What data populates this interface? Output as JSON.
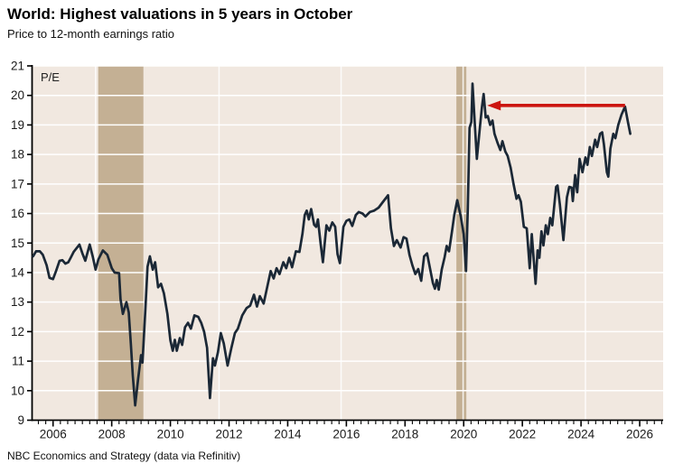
{
  "header": {
    "title": "World: Highest valuations in 5 years in October",
    "subtitle": "Price to 12-month earnings ratio"
  },
  "footer": {
    "source": "NBC Economics and Strategy (data via Refinitiv)"
  },
  "chart_data": {
    "type": "line",
    "title": "World: Highest valuations in 5 years in October",
    "subtitle": "Price to 12-month earnings ratio",
    "axis_corner_label": "P/E",
    "xlabel": "",
    "ylabel": "P/E",
    "x": {
      "min": 2005.3,
      "max": 2026.8,
      "major_ticks": [
        2006,
        2008,
        2010,
        2012,
        2014,
        2016,
        2018,
        2020,
        2022,
        2024,
        2026
      ],
      "minor_step": 0.25
    },
    "y": {
      "min": 9,
      "max": 21,
      "ticks": [
        9,
        10,
        11,
        12,
        13,
        14,
        15,
        16,
        17,
        18,
        19,
        20,
        21
      ]
    },
    "grid": "on",
    "legend": "none",
    "recession_bands": [
      {
        "from": 2007.54,
        "to": 2009.08
      },
      {
        "from": 2019.75,
        "to": 2020.09
      }
    ],
    "vertical_gridlines": [
      2007.45,
      2011.66,
      2015.82,
      2019.98,
      2024.15
    ],
    "annotation_arrow": {
      "value": 19.66,
      "tail_year": 2025.5,
      "head_year": 2020.8,
      "meaning": "October 2025 valuation equals highest level since late 2020"
    },
    "colors": {
      "plot_background": "#f1e8e0",
      "band": "#c4b094",
      "line": "#1b2836",
      "arrow": "#cc1510",
      "grid": "#ffffff",
      "axis": "#000000",
      "tick_text": "#1a1a1a"
    },
    "series": [
      {
        "name": "World price to 12-month earnings ratio",
        "points": [
          [
            2005.32,
            14.55
          ],
          [
            2005.42,
            14.72
          ],
          [
            2005.55,
            14.72
          ],
          [
            2005.65,
            14.6
          ],
          [
            2005.78,
            14.25
          ],
          [
            2005.88,
            13.82
          ],
          [
            2006.0,
            13.78
          ],
          [
            2006.1,
            14.05
          ],
          [
            2006.22,
            14.4
          ],
          [
            2006.32,
            14.42
          ],
          [
            2006.42,
            14.3
          ],
          [
            2006.52,
            14.35
          ],
          [
            2006.6,
            14.5
          ],
          [
            2006.7,
            14.7
          ],
          [
            2006.9,
            14.95
          ],
          [
            2007.0,
            14.65
          ],
          [
            2007.1,
            14.4
          ],
          [
            2007.25,
            14.95
          ],
          [
            2007.35,
            14.55
          ],
          [
            2007.45,
            14.1
          ],
          [
            2007.55,
            14.45
          ],
          [
            2007.7,
            14.75
          ],
          [
            2007.85,
            14.6
          ],
          [
            2008.0,
            14.15
          ],
          [
            2008.1,
            14.0
          ],
          [
            2008.25,
            13.98
          ],
          [
            2008.3,
            13.1
          ],
          [
            2008.38,
            12.6
          ],
          [
            2008.5,
            13.0
          ],
          [
            2008.58,
            12.65
          ],
          [
            2008.65,
            11.6
          ],
          [
            2008.72,
            10.5
          ],
          [
            2008.8,
            9.5
          ],
          [
            2008.9,
            10.4
          ],
          [
            2009.0,
            11.2
          ],
          [
            2009.05,
            10.95
          ],
          [
            2009.15,
            12.8
          ],
          [
            2009.22,
            14.2
          ],
          [
            2009.3,
            14.55
          ],
          [
            2009.4,
            14.1
          ],
          [
            2009.48,
            14.35
          ],
          [
            2009.58,
            13.5
          ],
          [
            2009.68,
            13.62
          ],
          [
            2009.78,
            13.3
          ],
          [
            2009.9,
            12.6
          ],
          [
            2010.0,
            11.7
          ],
          [
            2010.08,
            11.35
          ],
          [
            2010.15,
            11.72
          ],
          [
            2010.22,
            11.35
          ],
          [
            2010.32,
            11.78
          ],
          [
            2010.4,
            11.55
          ],
          [
            2010.5,
            12.15
          ],
          [
            2010.6,
            12.3
          ],
          [
            2010.7,
            12.1
          ],
          [
            2010.82,
            12.55
          ],
          [
            2010.95,
            12.5
          ],
          [
            2011.05,
            12.3
          ],
          [
            2011.15,
            12.0
          ],
          [
            2011.25,
            11.45
          ],
          [
            2011.35,
            9.75
          ],
          [
            2011.45,
            11.1
          ],
          [
            2011.52,
            10.85
          ],
          [
            2011.62,
            11.3
          ],
          [
            2011.72,
            11.95
          ],
          [
            2011.82,
            11.6
          ],
          [
            2011.95,
            10.85
          ],
          [
            2012.08,
            11.45
          ],
          [
            2012.2,
            11.95
          ],
          [
            2012.3,
            12.1
          ],
          [
            2012.45,
            12.55
          ],
          [
            2012.6,
            12.8
          ],
          [
            2012.72,
            12.88
          ],
          [
            2012.85,
            13.25
          ],
          [
            2012.95,
            12.85
          ],
          [
            2013.05,
            13.2
          ],
          [
            2013.18,
            12.95
          ],
          [
            2013.32,
            13.6
          ],
          [
            2013.42,
            14.05
          ],
          [
            2013.52,
            13.8
          ],
          [
            2013.62,
            14.15
          ],
          [
            2013.72,
            13.95
          ],
          [
            2013.85,
            14.35
          ],
          [
            2013.95,
            14.15
          ],
          [
            2014.05,
            14.5
          ],
          [
            2014.15,
            14.18
          ],
          [
            2014.28,
            14.72
          ],
          [
            2014.4,
            14.7
          ],
          [
            2014.5,
            15.3
          ],
          [
            2014.58,
            15.95
          ],
          [
            2014.65,
            16.1
          ],
          [
            2014.72,
            15.8
          ],
          [
            2014.8,
            16.15
          ],
          [
            2014.9,
            15.62
          ],
          [
            2014.97,
            15.55
          ],
          [
            2015.03,
            15.8
          ],
          [
            2015.12,
            15.0
          ],
          [
            2015.2,
            14.35
          ],
          [
            2015.32,
            15.6
          ],
          [
            2015.42,
            15.42
          ],
          [
            2015.52,
            15.7
          ],
          [
            2015.62,
            15.55
          ],
          [
            2015.7,
            14.62
          ],
          [
            2015.78,
            14.32
          ],
          [
            2015.9,
            15.55
          ],
          [
            2016.0,
            15.75
          ],
          [
            2016.1,
            15.8
          ],
          [
            2016.2,
            15.58
          ],
          [
            2016.32,
            15.95
          ],
          [
            2016.42,
            16.05
          ],
          [
            2016.55,
            16.0
          ],
          [
            2016.65,
            15.9
          ],
          [
            2016.8,
            16.05
          ],
          [
            2016.95,
            16.1
          ],
          [
            2017.1,
            16.2
          ],
          [
            2017.25,
            16.4
          ],
          [
            2017.42,
            16.62
          ],
          [
            2017.52,
            15.5
          ],
          [
            2017.62,
            14.9
          ],
          [
            2017.72,
            15.1
          ],
          [
            2017.85,
            14.85
          ],
          [
            2017.95,
            15.2
          ],
          [
            2018.05,
            15.15
          ],
          [
            2018.15,
            14.6
          ],
          [
            2018.25,
            14.25
          ],
          [
            2018.35,
            13.95
          ],
          [
            2018.45,
            14.12
          ],
          [
            2018.55,
            13.72
          ],
          [
            2018.65,
            14.55
          ],
          [
            2018.75,
            14.65
          ],
          [
            2018.85,
            14.15
          ],
          [
            2018.95,
            13.65
          ],
          [
            2019.02,
            13.45
          ],
          [
            2019.08,
            13.75
          ],
          [
            2019.15,
            13.42
          ],
          [
            2019.25,
            14.1
          ],
          [
            2019.35,
            14.52
          ],
          [
            2019.42,
            14.9
          ],
          [
            2019.5,
            14.72
          ],
          [
            2019.6,
            15.4
          ],
          [
            2019.68,
            15.95
          ],
          [
            2019.78,
            16.45
          ],
          [
            2019.9,
            15.9
          ],
          [
            2020.0,
            15.3
          ],
          [
            2020.08,
            14.05
          ],
          [
            2020.14,
            16.2
          ],
          [
            2020.2,
            18.9
          ],
          [
            2020.26,
            19.1
          ],
          [
            2020.3,
            20.4
          ],
          [
            2020.38,
            19.0
          ],
          [
            2020.45,
            17.85
          ],
          [
            2020.55,
            18.9
          ],
          [
            2020.62,
            19.6
          ],
          [
            2020.68,
            20.05
          ],
          [
            2020.75,
            19.25
          ],
          [
            2020.82,
            19.3
          ],
          [
            2020.9,
            19.0
          ],
          [
            2020.98,
            19.15
          ],
          [
            2021.05,
            18.7
          ],
          [
            2021.15,
            18.4
          ],
          [
            2021.25,
            18.15
          ],
          [
            2021.32,
            18.45
          ],
          [
            2021.42,
            18.1
          ],
          [
            2021.5,
            17.95
          ],
          [
            2021.6,
            17.55
          ],
          [
            2021.7,
            17.0
          ],
          [
            2021.8,
            16.5
          ],
          [
            2021.87,
            16.62
          ],
          [
            2021.95,
            16.4
          ],
          [
            2022.05,
            15.55
          ],
          [
            2022.15,
            15.5
          ],
          [
            2022.25,
            14.15
          ],
          [
            2022.32,
            15.3
          ],
          [
            2022.45,
            13.62
          ],
          [
            2022.52,
            14.75
          ],
          [
            2022.58,
            14.5
          ],
          [
            2022.65,
            15.4
          ],
          [
            2022.72,
            14.92
          ],
          [
            2022.8,
            15.6
          ],
          [
            2022.87,
            15.3
          ],
          [
            2022.95,
            15.85
          ],
          [
            2023.02,
            15.6
          ],
          [
            2023.15,
            16.9
          ],
          [
            2023.2,
            16.95
          ],
          [
            2023.28,
            16.3
          ],
          [
            2023.4,
            15.1
          ],
          [
            2023.52,
            16.55
          ],
          [
            2023.6,
            16.9
          ],
          [
            2023.68,
            16.88
          ],
          [
            2023.72,
            16.42
          ],
          [
            2023.8,
            17.3
          ],
          [
            2023.87,
            16.72
          ],
          [
            2023.95,
            17.85
          ],
          [
            2024.05,
            17.4
          ],
          [
            2024.15,
            17.9
          ],
          [
            2024.22,
            17.65
          ],
          [
            2024.3,
            18.25
          ],
          [
            2024.37,
            17.95
          ],
          [
            2024.48,
            18.5
          ],
          [
            2024.55,
            18.25
          ],
          [
            2024.65,
            18.7
          ],
          [
            2024.72,
            18.75
          ],
          [
            2024.78,
            18.35
          ],
          [
            2024.88,
            17.4
          ],
          [
            2024.93,
            17.25
          ],
          [
            2025.0,
            18.2
          ],
          [
            2025.1,
            18.7
          ],
          [
            2025.17,
            18.55
          ],
          [
            2025.27,
            19.0
          ],
          [
            2025.38,
            19.35
          ],
          [
            2025.5,
            19.62
          ],
          [
            2025.6,
            19.1
          ],
          [
            2025.68,
            18.7
          ]
        ]
      }
    ]
  }
}
